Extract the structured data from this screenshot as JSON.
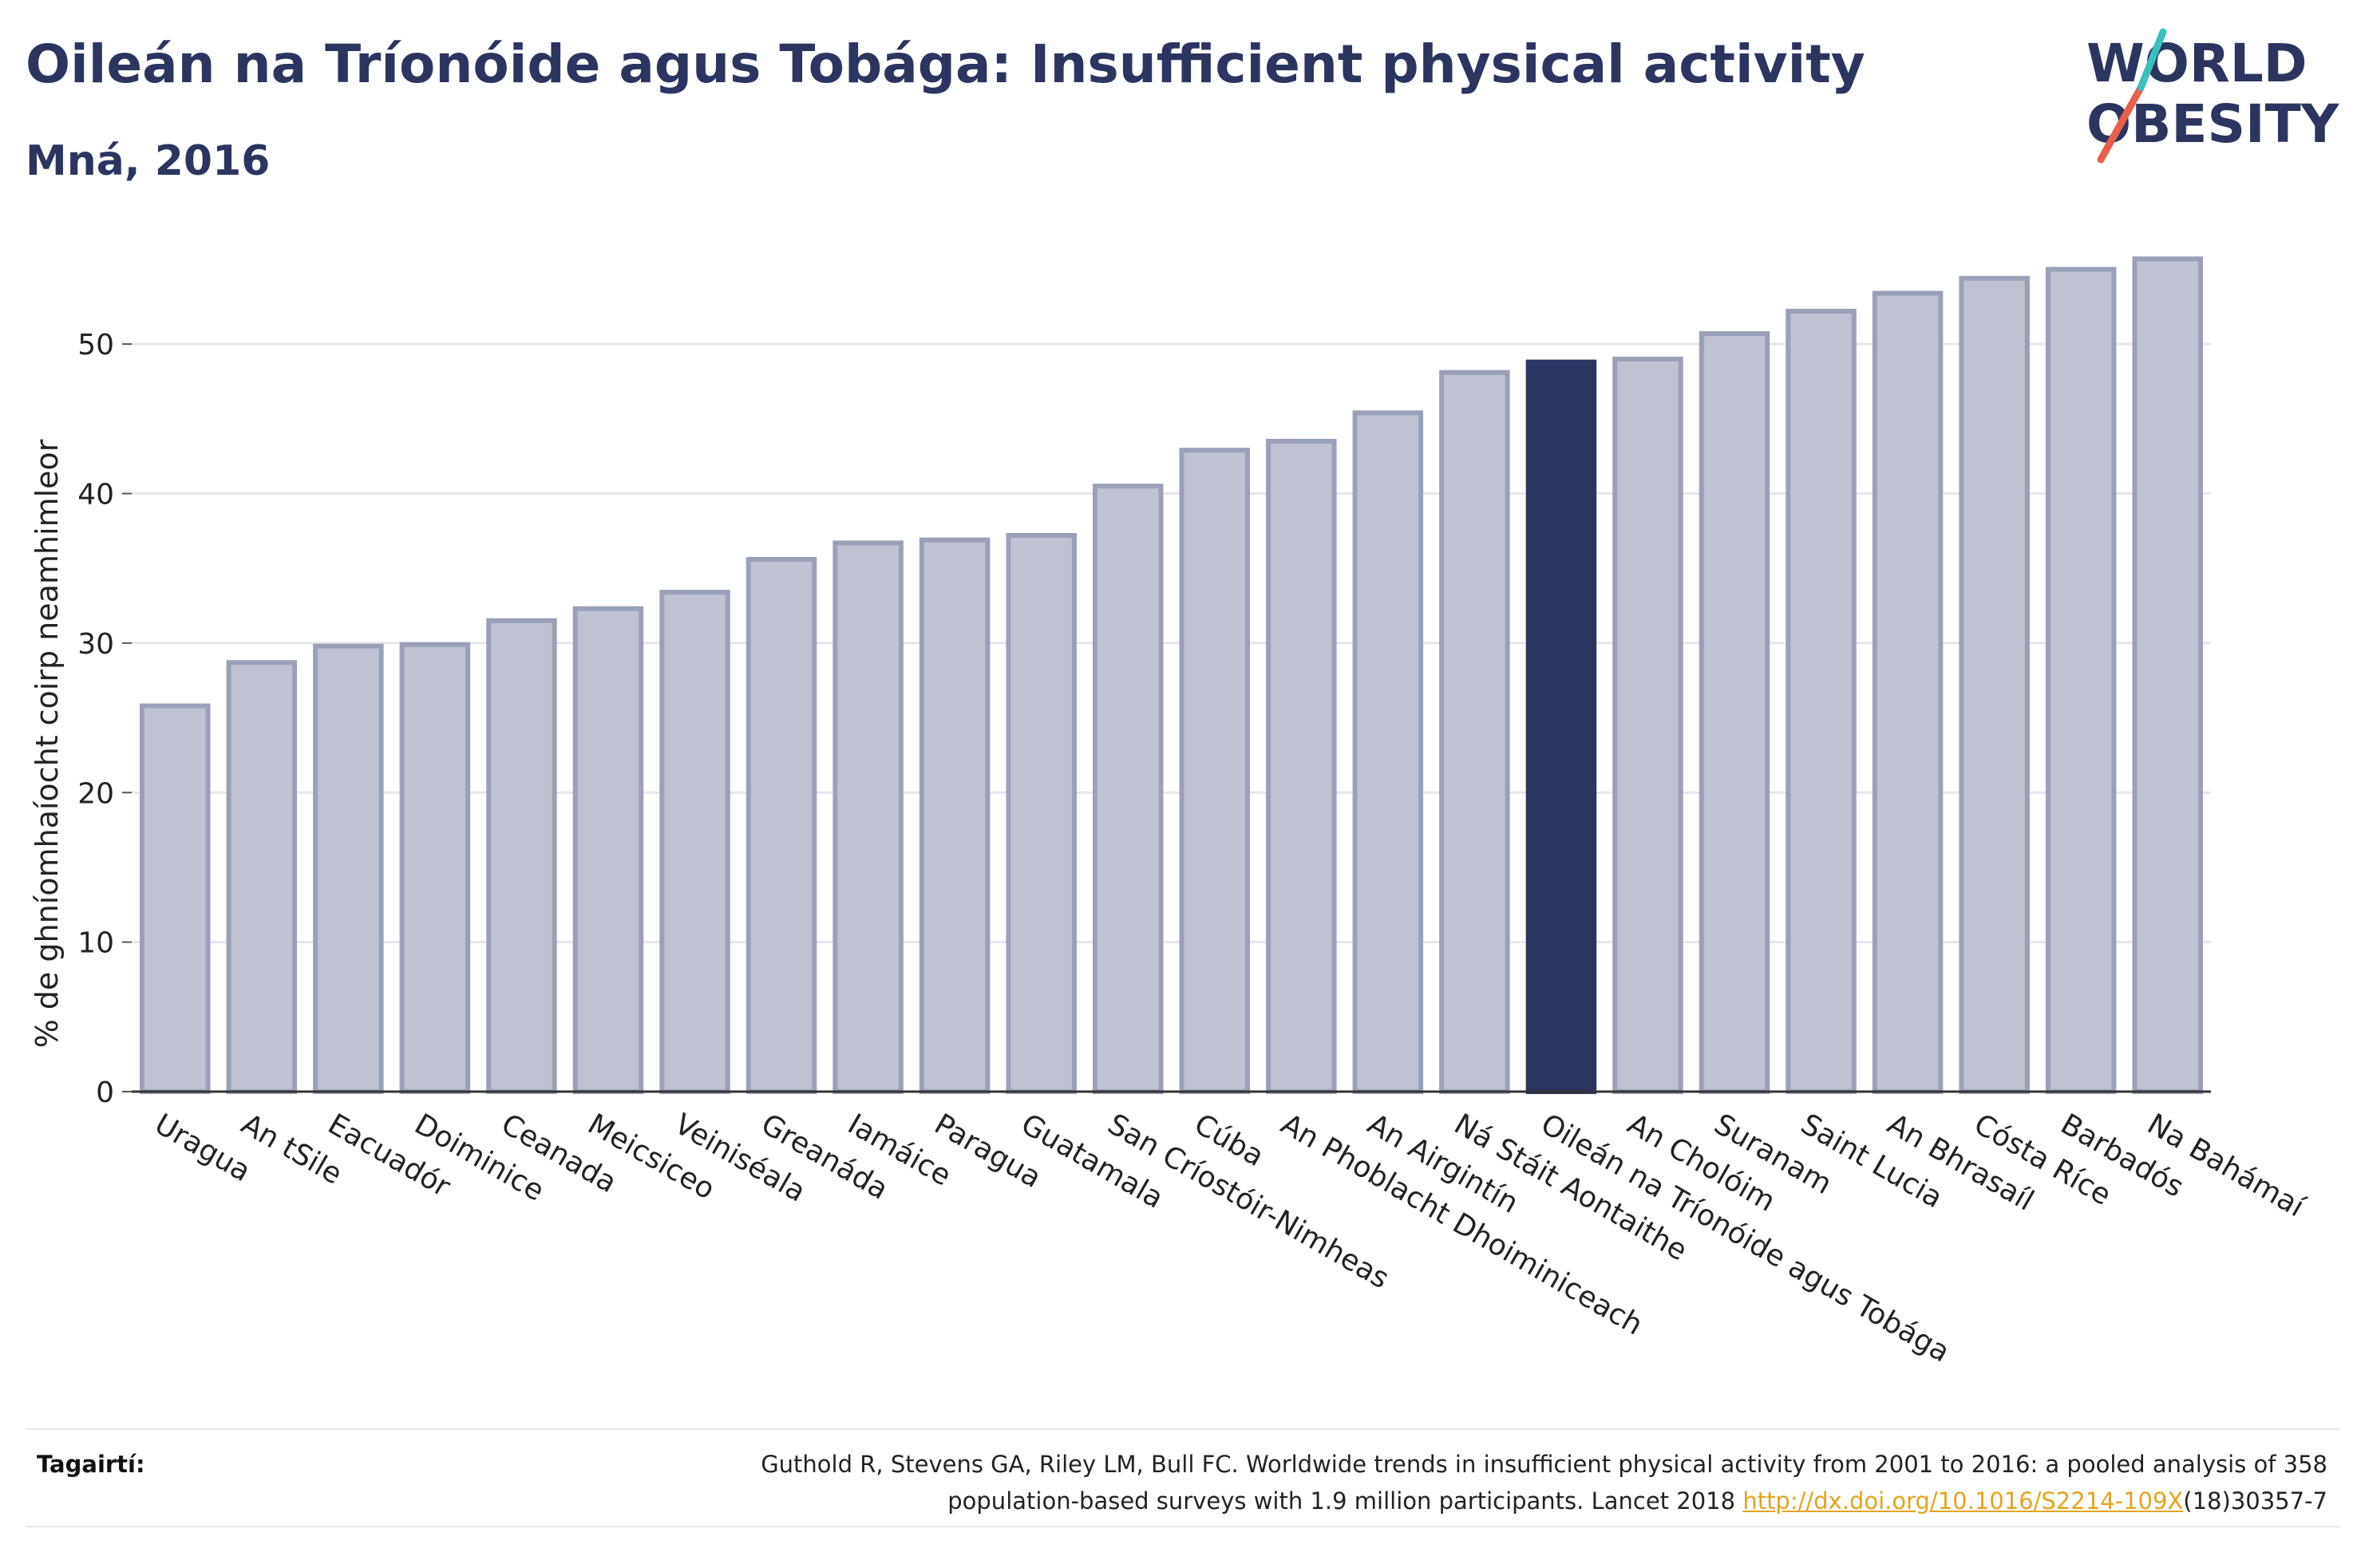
{
  "header": {
    "title": "Oileán na Tríonóide agus Tobága: Insufficient physical activity",
    "subtitle": "Mná, 2016"
  },
  "logo": {
    "line1": "WORLD",
    "line2": "OBESITY",
    "accent_colors": [
      "#e8604c",
      "#3bbfbf"
    ]
  },
  "footer": {
    "label": "Tagairtí:",
    "ref_line1": "Guthold R, Stevens GA, Riley LM, Bull FC. Worldwide trends in insufficient physical activity from 2001 to 2016: a pooled analysis of 358",
    "ref_line2_prefix": "population-based surveys with 1.9 million participants. Lancet 2018 ",
    "ref_link": "http://dx.doi.org/10.1016/S2214-109X",
    "ref_line2_suffix": "(18)30357-7"
  },
  "colors": {
    "bar": "#bfc2d0",
    "bar_border": "#9aa0b8",
    "highlight": "#2b3560",
    "grid": "#e6e6ec",
    "axis": "#333333"
  },
  "chart_data": {
    "type": "bar",
    "title": "Oileán na Tríonóide agus Tobága: Insufficient physical activity",
    "subtitle": "Mná, 2016",
    "xlabel": "",
    "ylabel": "% de ghníomhaíocht coirp neamhimleor",
    "ylim": [
      0,
      57
    ],
    "yticks": [
      0,
      10,
      20,
      30,
      40,
      50
    ],
    "grid": true,
    "highlight_category": "Oileán na Tríonóide agus Tobága",
    "categories": [
      "Uragua",
      "An tSile",
      "Eacuadór",
      "Doiminice",
      "Ceanada",
      "Meicsiceo",
      "Veiniséala",
      "Greanáda",
      "Iamáice",
      "Paragua",
      "Guatamala",
      "San Críostóir-Nimheas",
      "Cúba",
      "An Phoblacht Dhoiminiceach",
      "An Airgintín",
      "Ná Stáit Aontaithe",
      "Oileán na Tríonóide agus Tobága",
      "An Cholóim",
      "Suranam",
      "Saint Lucia",
      "An Bhrasaíl",
      "Cósta Ríce",
      "Barbadós",
      "Na Bahámaí"
    ],
    "values": [
      25.8,
      28.7,
      29.8,
      29.9,
      31.5,
      32.3,
      33.4,
      35.6,
      36.7,
      36.9,
      37.2,
      40.5,
      42.9,
      43.5,
      45.4,
      48.1,
      48.8,
      49.0,
      50.7,
      52.2,
      53.4,
      54.4,
      55.0,
      55.7
    ]
  }
}
